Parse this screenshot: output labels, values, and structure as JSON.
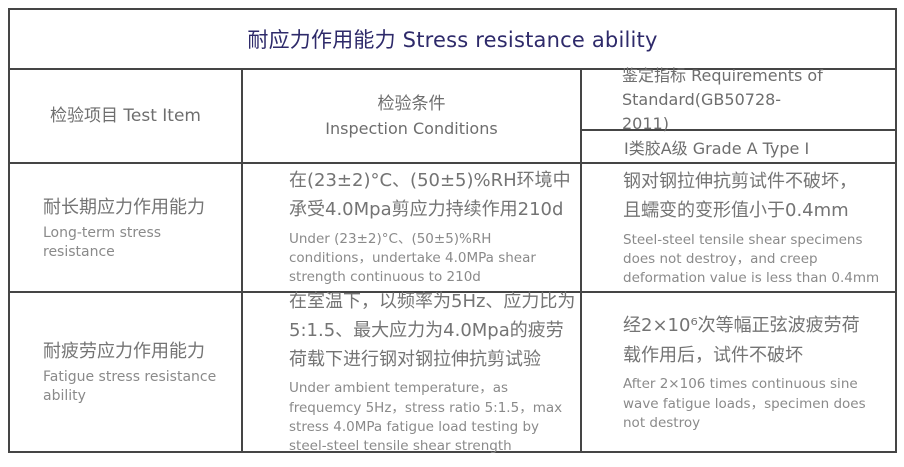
{
  "title": "耐应力作用能力 Stress resistance ability",
  "header": {
    "test_item": "检验项目 Test Item",
    "conditions_zh": "检验条件",
    "conditions_en": "Inspection Conditions",
    "requirements": "鉴定指标 Requirements of Standard(GB50728-2011)",
    "grade": "Ⅰ类胶A级  Grade A Type Ⅰ"
  },
  "rows": [
    {
      "item_zh": "耐长期应力作用能力",
      "item_en": "Long-term stress resistance",
      "condition_zh": "在(23±2)°C、(50±5)%RH环境中承受4.0Mpa剪应力持续作用210d",
      "condition_en": "Under (23±2)°C、(50±5)%RH conditions，undertake 4.0MPa shear strength continuous to 210d",
      "requirement_zh": "钢对钢拉伸抗剪试件不破坏，且蠕变的变形值小于0.4mm",
      "requirement_en": "Steel-steel tensile shear specimens does not destroy，and creep deformation value is less than 0.4mm"
    },
    {
      "item_zh": "耐疲劳应力作用能力",
      "item_en": "Fatigue stress resistance ability",
      "condition_zh": "在室温下，以频率为5Hz、应力比为5:1.5、最大应力为4.0Mpa的疲劳荷载下进行钢对钢拉伸抗剪试验",
      "condition_en": "Under ambient temperature，as frequemcy 5Hz，stress ratio 5:1.5，max stress 4.0MPa fatigue load testing by steel-steel tensile shear strength",
      "requirement_zh": "经2×10⁶次等幅正弦波疲劳荷载作用后，试件不破坏",
      "requirement_en": "After 2×106 times continuous sine wave fatigue loads，specimen does not destroy"
    }
  ],
  "colors": {
    "title_text": "#2e2a6a",
    "border": "#454545",
    "text_primary": "#747474",
    "text_secondary": "#8a8a8a",
    "header_text": "#6e6e6e",
    "background": "#ffffff"
  }
}
